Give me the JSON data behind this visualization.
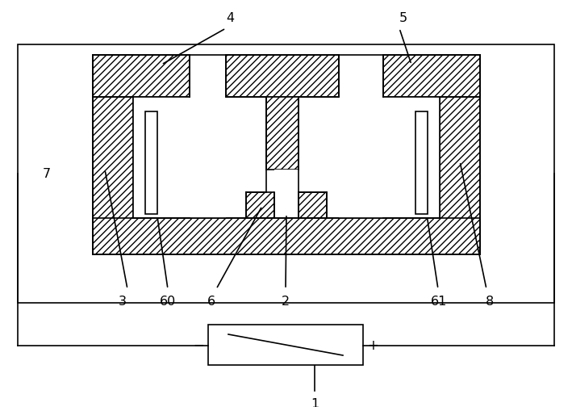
{
  "bg_color": "#ffffff",
  "line_color": "#000000",
  "line_width": 1.2,
  "hatch_pattern": "////",
  "figsize": [
    7.09,
    5.04
  ],
  "dpi": 100
}
